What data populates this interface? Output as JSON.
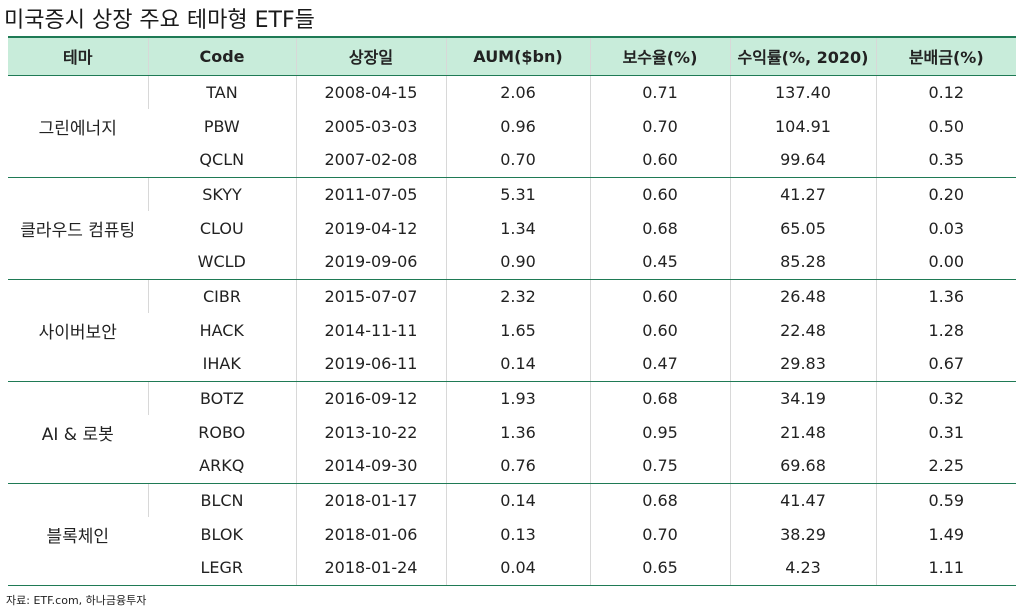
{
  "title": "미국증시 상장 주요 테마형 ETF들",
  "source": "자료: ETF.com, 하나금융투자",
  "headers": [
    "테마",
    "Code",
    "상장일",
    "AUM($bn)",
    "보수율(%)",
    "수익률(%, 2020)",
    "분배금(%)"
  ],
  "groups": [
    {
      "theme": "그린에너지",
      "rows": [
        {
          "code": "TAN",
          "date": "2008-04-15",
          "aum": "2.06",
          "fee": "0.71",
          "ret": "137.40",
          "div": "0.12"
        },
        {
          "code": "PBW",
          "date": "2005-03-03",
          "aum": "0.96",
          "fee": "0.70",
          "ret": "104.91",
          "div": "0.50"
        },
        {
          "code": "QCLN",
          "date": "2007-02-08",
          "aum": "0.70",
          "fee": "0.60",
          "ret": "99.64",
          "div": "0.35"
        }
      ]
    },
    {
      "theme": "클라우드 컴퓨팅",
      "rows": [
        {
          "code": "SKYY",
          "date": "2011-07-05",
          "aum": "5.31",
          "fee": "0.60",
          "ret": "41.27",
          "div": "0.20"
        },
        {
          "code": "CLOU",
          "date": "2019-04-12",
          "aum": "1.34",
          "fee": "0.68",
          "ret": "65.05",
          "div": "0.03"
        },
        {
          "code": "WCLD",
          "date": "2019-09-06",
          "aum": "0.90",
          "fee": "0.45",
          "ret": "85.28",
          "div": "0.00"
        }
      ]
    },
    {
      "theme": "사이버보안",
      "rows": [
        {
          "code": "CIBR",
          "date": "2015-07-07",
          "aum": "2.32",
          "fee": "0.60",
          "ret": "26.48",
          "div": "1.36"
        },
        {
          "code": "HACK",
          "date": "2014-11-11",
          "aum": "1.65",
          "fee": "0.60",
          "ret": "22.48",
          "div": "1.28"
        },
        {
          "code": "IHAK",
          "date": "2019-06-11",
          "aum": "0.14",
          "fee": "0.47",
          "ret": "29.83",
          "div": "0.67"
        }
      ]
    },
    {
      "theme": "AI & 로봇",
      "rows": [
        {
          "code": "BOTZ",
          "date": "2016-09-12",
          "aum": "1.93",
          "fee": "0.68",
          "ret": "34.19",
          "div": "0.32"
        },
        {
          "code": "ROBO",
          "date": "2013-10-22",
          "aum": "1.36",
          "fee": "0.95",
          "ret": "21.48",
          "div": "0.31"
        },
        {
          "code": "ARKQ",
          "date": "2014-09-30",
          "aum": "0.76",
          "fee": "0.75",
          "ret": "69.68",
          "div": "2.25"
        }
      ]
    },
    {
      "theme": "블록체인",
      "rows": [
        {
          "code": "BLCN",
          "date": "2018-01-17",
          "aum": "0.14",
          "fee": "0.68",
          "ret": "41.47",
          "div": "0.59"
        },
        {
          "code": "BLOK",
          "date": "2018-01-06",
          "aum": "0.13",
          "fee": "0.70",
          "ret": "38.29",
          "div": "1.49"
        },
        {
          "code": "LEGR",
          "date": "2018-01-24",
          "aum": "0.04",
          "fee": "0.65",
          "ret": "4.23",
          "div": "1.11"
        }
      ]
    }
  ],
  "colors": {
    "header_bg": "#c8ecda",
    "rule": "#1f7a55",
    "grid": "#d8d8d8"
  }
}
